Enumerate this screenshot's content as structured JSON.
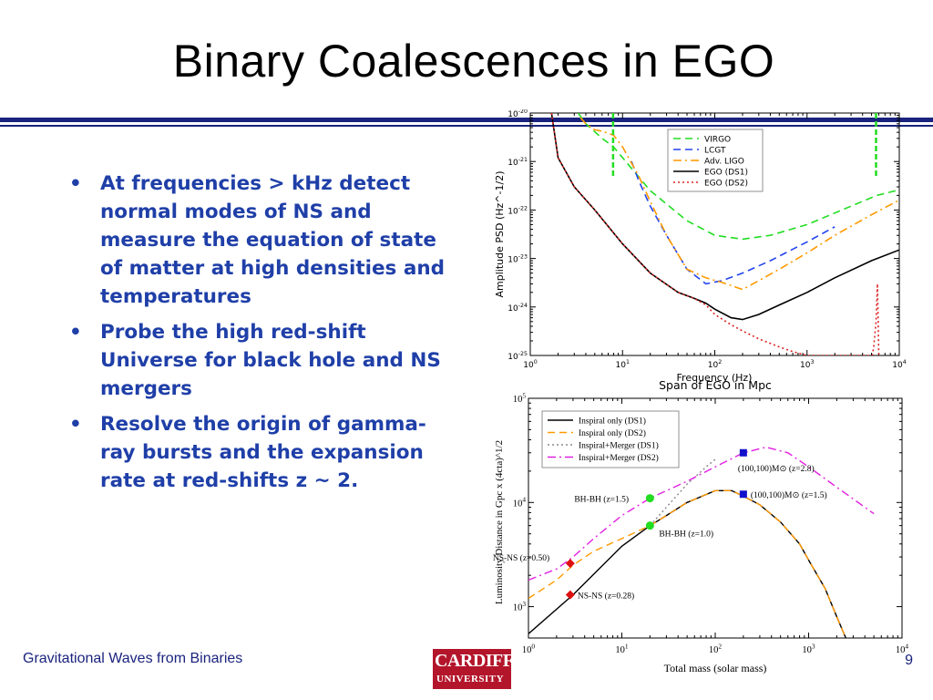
{
  "slide": {
    "title": "Binary Coalescences in EGO",
    "bullets": [
      "At frequencies > kHz detect normal modes of NS and measure the equation of state of matter at high densities and temperatures",
      "Probe the high red-shift Universe for black hole and NS mergers",
      "Resolve the origin of gamma-ray bursts and the expansion rate at red-shifts z ~ 2."
    ],
    "bullet_glyph": "•",
    "footer": "Gravitational Waves from Binaries",
    "page_number": "9",
    "logo": {
      "line1": "CARDIFF",
      "line2": "UNIVERSITY"
    },
    "accent_color": "#1a237e",
    "bullet_color": "#1f3fa8"
  },
  "chart_data": [
    {
      "type": "line",
      "xlabel": "Frequency (Hz)",
      "ylabel": "Amplitude PSD (Hz^-1/2)",
      "x_scale": "log",
      "y_scale": "log",
      "xlim": [
        1,
        10000
      ],
      "ylim": [
        1e-25,
        1e-20
      ],
      "x_ticks": [
        "10^0",
        "10^1",
        "10^2",
        "10^3",
        "10^4"
      ],
      "y_ticks": [
        "10^-20",
        "10^-21",
        "10^-22",
        "10^-23",
        "10^-24",
        "10^-25"
      ],
      "grid": false,
      "legend_position": "top-right",
      "series": [
        {
          "name": "VIRGO",
          "color": "#22dd22",
          "style": "dashed",
          "x": [
            3.3,
            4,
            6,
            8,
            10,
            20,
            50,
            100,
            200,
            400,
            1000,
            3000,
            5700,
            10000
          ],
          "y": [
            1e-20,
            6e-21,
            3e-21,
            2e-21,
            1.2e-21,
            2.5e-22,
            6e-23,
            3e-23,
            2.5e-23,
            3e-23,
            5e-23,
            1.2e-22,
            2e-22,
            2.6e-22
          ]
        },
        {
          "name": "LCGT",
          "color": "#2244ee",
          "style": "dashed",
          "x": [
            12.5,
            15,
            20,
            30,
            50,
            80,
            120,
            200,
            400,
            1000,
            2000
          ],
          "y": [
            1e-21,
            4e-22,
            1.2e-22,
            3e-23,
            6e-24,
            3e-24,
            3.5e-24,
            5e-24,
            9e-24,
            2.2e-23,
            4.5e-23
          ]
        },
        {
          "name": "Adv. LIGO",
          "color": "#ff9900",
          "style": "dashdot",
          "x": [
            3.5,
            4,
            5,
            6,
            8,
            10,
            15,
            20,
            30,
            50,
            80,
            120,
            200,
            300,
            500,
            1000,
            2000,
            5000,
            10000
          ],
          "y": [
            8e-21,
            6e-21,
            4.5e-21,
            4.2e-21,
            3.5e-21,
            2e-21,
            5e-22,
            1.5e-22,
            3e-23,
            6e-24,
            4e-24,
            3.2e-24,
            2.3e-24,
            3.5e-24,
            6e-24,
            1.3e-23,
            3e-23,
            8e-23,
            1.6e-22
          ]
        },
        {
          "name": "EGO (DS1)",
          "color": "#000000",
          "style": "solid",
          "x": [
            1.7,
            2,
            3,
            5,
            10,
            20,
            40,
            60,
            80,
            100,
            150,
            200,
            300,
            500,
            1000,
            2000,
            5000,
            10000
          ],
          "y": [
            1e-20,
            1.2e-21,
            3e-22,
            1e-22,
            2e-23,
            5e-24,
            2e-24,
            1.5e-24,
            1.2e-24,
            9e-25,
            6e-25,
            5.5e-25,
            7e-25,
            1.1e-24,
            2e-24,
            4e-24,
            9e-24,
            1.5e-23
          ]
        },
        {
          "name": "EGO (DS2)",
          "color": "#dd2222",
          "style": "dotted",
          "x": [
            1.7,
            2,
            3,
            5,
            10,
            20,
            40,
            60,
            80,
            100,
            150,
            200,
            300,
            500,
            700,
            1000,
            5100,
            5300,
            5600,
            5800,
            6000
          ],
          "y": [
            1e-20,
            1.2e-21,
            3e-22,
            1e-22,
            2e-23,
            5e-24,
            2e-24,
            1.5e-24,
            1.1e-24,
            7e-25,
            4.3e-25,
            3.2e-25,
            2.2e-25,
            1.5e-25,
            1.2e-25,
            1e-25,
            1e-25,
            1.6e-25,
            5e-25,
            3e-24,
            1e-25
          ]
        }
      ],
      "vertical_lines": [
        {
          "series": "VIRGO",
          "x": 7.9,
          "color": "#22dd22"
        },
        {
          "series": "VIRGO",
          "x": 5600,
          "color": "#22dd22"
        }
      ]
    },
    {
      "type": "line",
      "title": "Span of EGO in Mpc",
      "xlabel": "Total mass (solar mass)",
      "ylabel": "Luminosity Distance in Gpc x (4cta)^1/2",
      "x_scale": "log",
      "y_scale": "log",
      "xlim": [
        1,
        10000
      ],
      "ylim": [
        500,
        100000
      ],
      "x_ticks": [
        "10^0",
        "10^1",
        "10^2",
        "10^3",
        "10^4"
      ],
      "y_ticks": [
        "10^5",
        "10^4",
        "10^3"
      ],
      "grid": false,
      "legend_position": "top-left",
      "series": [
        {
          "name": "Inspiral only (DS1)",
          "color": "#000000",
          "style": "solid",
          "x": [
            1,
            3,
            10,
            20,
            30,
            50,
            100,
            150,
            200,
            300,
            500,
            800,
            1000,
            1500,
            2000,
            2500
          ],
          "y": [
            550,
            1300,
            3800,
            6000,
            7500,
            10000,
            13000,
            13000,
            11500,
            9500,
            6500,
            4000,
            2800,
            1500,
            800,
            500
          ]
        },
        {
          "name": "Inspiral only (DS2)",
          "color": "#ff9900",
          "style": "dashed",
          "x": [
            1,
            2,
            3,
            5,
            10,
            20,
            30,
            50,
            100,
            150,
            200,
            300,
            500,
            800,
            1000,
            1500,
            2000,
            2500
          ],
          "y": [
            1200,
            1800,
            2500,
            3400,
            4500,
            6000,
            7500,
            10000,
            13000,
            13000,
            11500,
            9500,
            6500,
            4000,
            2800,
            1500,
            800,
            500
          ]
        },
        {
          "name": "Inspiral+Merger (DS1)",
          "color": "#888888",
          "style": "dotted",
          "x": [
            20,
            30,
            50,
            80,
            100
          ],
          "y": [
            6000,
            9000,
            15000,
            22000,
            26000
          ]
        },
        {
          "name": "Inspiral+Merger (DS2)",
          "color": "#e020e0",
          "style": "dashdot",
          "x": [
            1,
            2,
            3,
            5,
            10,
            20,
            50,
            100,
            200,
            350,
            600,
            1000,
            2000,
            5000
          ],
          "y": [
            1800,
            2300,
            3000,
            4500,
            7500,
            11000,
            16000,
            22000,
            30000,
            34000,
            30000,
            22000,
            14000,
            7800
          ]
        }
      ],
      "annotations": [
        {
          "text": "BH-BH (z=1.5)",
          "x": 20,
          "y": 11000,
          "marker": "circle",
          "color": "#22dd22"
        },
        {
          "text": "BH-BH (z=1.0)",
          "x": 20,
          "y": 6000,
          "marker": "circle",
          "color": "#22dd22"
        },
        {
          "text": "NS-NS (z=0.50)",
          "x": 2.8,
          "y": 2600,
          "marker": "diamond",
          "color": "#dd1111"
        },
        {
          "text": "NS-NS (z=0.28)",
          "x": 2.8,
          "y": 1300,
          "marker": "diamond",
          "color": "#dd1111"
        },
        {
          "text": "(100,100)M⊙ (z=2.8)",
          "x": 200,
          "y": 30000,
          "marker": "square",
          "color": "#1111cc"
        },
        {
          "text": "(100,100)M⊙ (z=1.5)",
          "x": 200,
          "y": 12000,
          "marker": "square",
          "color": "#1111cc"
        }
      ]
    }
  ]
}
